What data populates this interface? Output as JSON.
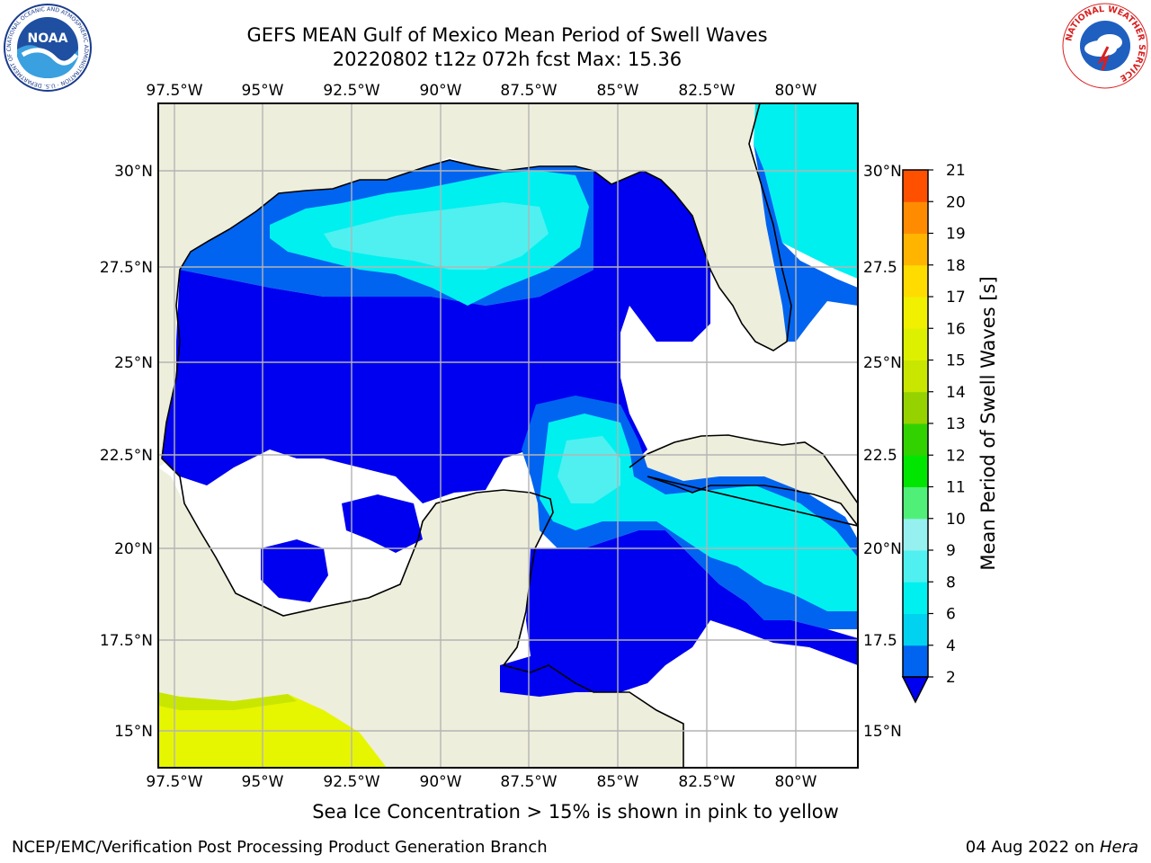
{
  "header": {
    "title_line1": "GEFS MEAN Gulf of Mexico Mean Period of Swell Waves",
    "title_line2": "20220802 t12z 072h fcst   Max: 15.36"
  },
  "logos": {
    "left": "NOAA",
    "left_ring_text": "NATIONAL OCEANIC AND ATMOSPHERIC ADMINISTRATION · U.S. DEPARTMENT OF COMMERCE",
    "right_ring_text": "NATIONAL WEATHER SERVICE"
  },
  "map": {
    "lon_labels": [
      "97.5°W",
      "95°W",
      "92.5°W",
      "90°W",
      "87.5°W",
      "85°W",
      "82.5°W",
      "80°W"
    ],
    "lat_labels_left": [
      "30°N",
      "27.5°N",
      "25°N",
      "22.5°N",
      "20°N",
      "17.5°N",
      "15°N"
    ],
    "lat_labels_right": [
      "30°N",
      "27.5",
      "25°N",
      "22.5",
      "20°N",
      "17.5",
      "15°N"
    ],
    "colors": {
      "land": "#eeeedc",
      "no_data": "#ffffff",
      "coast": "#000000",
      "grid": "#b4b4b4"
    }
  },
  "colorbar": {
    "label": "Mean Period of Swell Waves [s]",
    "ticks": [
      "2",
      "4",
      "6",
      "8",
      "9",
      "10",
      "11",
      "12",
      "13",
      "14",
      "15",
      "16",
      "17",
      "18",
      "19",
      "20",
      "21"
    ],
    "colors": [
      "#0064f0",
      "#00d2f0",
      "#00f0f0",
      "#50f0f0",
      "#96f0f0",
      "#50f078",
      "#00e600",
      "#32d200",
      "#96d200",
      "#c8e600",
      "#dcf000",
      "#f0f000",
      "#ffdc00",
      "#ffb400",
      "#ff8c00",
      "#ff5000",
      "#ff2800",
      "#ff0000"
    ]
  },
  "legend_colors": {
    "swell_2_4": "#0000f0",
    "swell_4_6": "#0064f0",
    "swell_6_8": "#00f0f0",
    "swell_8_9": "#50f0f0",
    "ice_yellow": "#e6f500"
  },
  "footer": {
    "footnote": "Sea Ice Concentration > 15% is shown in pink to yellow",
    "credit": "NCEP/EMC/Verification Post Processing Product Generation Branch",
    "date": "04 Aug 2022 on ",
    "host": "Hera"
  }
}
